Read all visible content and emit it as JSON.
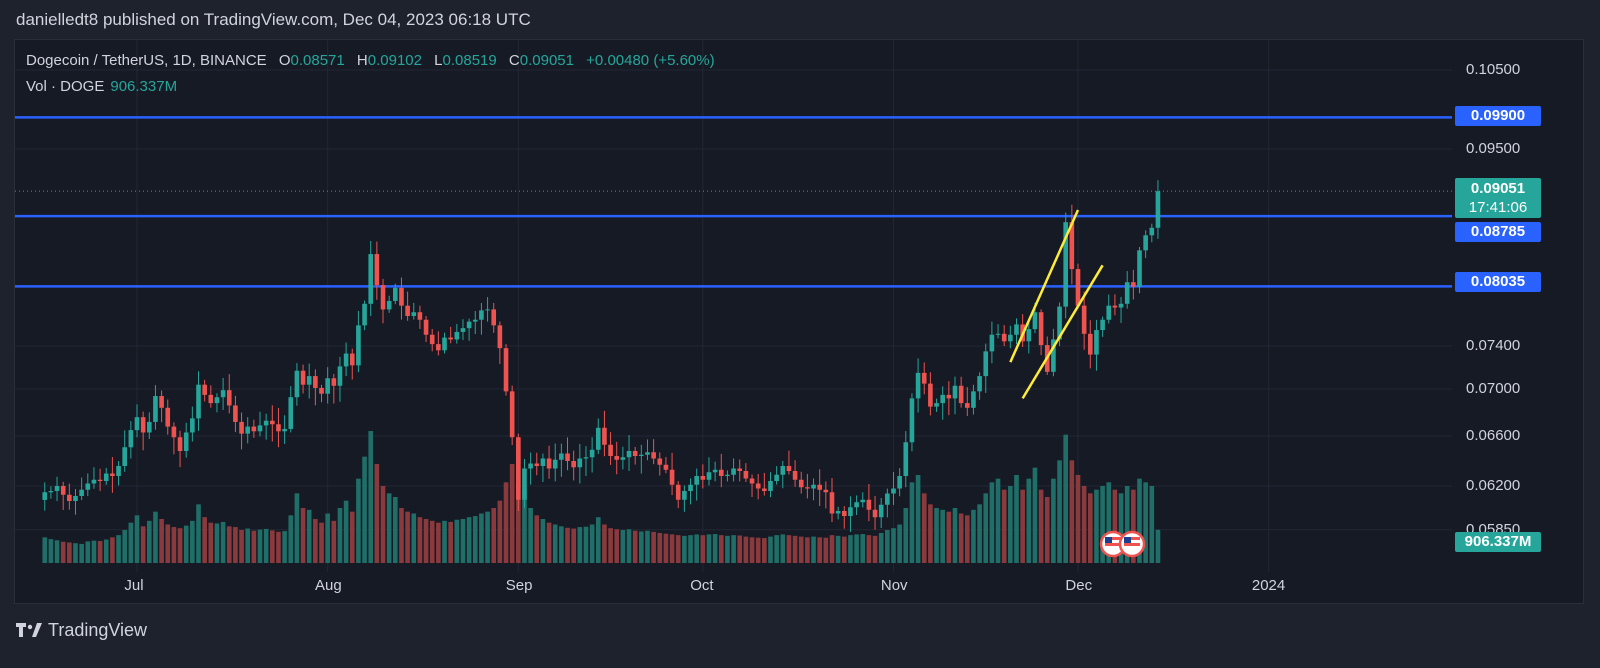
{
  "publisher_line": "danielledt8 published on TradingView.com, Dec 04, 2023 06:18 UTC",
  "footer_brand": "TradingView",
  "legend": {
    "symbol": "Dogecoin / TetherUS, 1D, BINANCE",
    "o_key": "O",
    "o_val": "0.08571",
    "h_key": "H",
    "h_val": "0.09102",
    "l_key": "L",
    "l_val": "0.08519",
    "c_key": "C",
    "c_val": "0.09051",
    "change": "+0.00480 (+5.60%)",
    "vol_label": "Vol · DOGE",
    "vol_val": "906.337M"
  },
  "price_tags": {
    "level_1": "0.09900",
    "current": "0.09051",
    "countdown": "17:41:06",
    "level_2": "0.08785",
    "level_3": "0.08035",
    "volume": "906.337M"
  },
  "colors": {
    "up": "#26a69a",
    "down": "#ef5350",
    "vol_up": "#1f6e67",
    "vol_down": "#8a3a3c",
    "level_line": "#2962ff",
    "channel": "#ffeb3b"
  },
  "chart_data": {
    "type": "candlestick",
    "title": "Dogecoin / TetherUS, 1D, BINANCE",
    "y_ticks": [
      0.105,
      0.099,
      0.095,
      0.0905,
      0.0878,
      0.0803,
      0.074,
      0.07,
      0.066,
      0.062,
      0.0585
    ],
    "y_tick_labels": [
      "0.10500",
      "0.09500",
      "0.07400",
      "0.07000",
      "0.06600",
      "0.06200",
      "0.05850"
    ],
    "x_labels": [
      "Jul",
      "Aug",
      "Sep",
      "Oct",
      "Nov",
      "Dec",
      "2024"
    ],
    "x_label_dates": [
      "2023-07-01",
      "2023-08-01",
      "2023-09-01",
      "2023-10-01",
      "2023-11-01",
      "2023-12-01",
      "2024-01-01"
    ],
    "horizontal_levels": [
      0.099,
      0.08785,
      0.08035
    ],
    "current_price": 0.09051,
    "channel_lines": [
      {
        "x1": "2023-11-20",
        "y1": 0.0725,
        "x2": "2023-12-01",
        "y2": 0.0885
      },
      {
        "x1": "2023-11-22",
        "y1": 0.0692,
        "x2": "2023-12-05",
        "y2": 0.0826
      }
    ],
    "ohlc_source": "approximated daily candles 2023-06-16 to 2023-12-04",
    "closes": [
      0.0615,
      0.0616,
      0.062,
      0.0613,
      0.0608,
      0.0612,
      0.0617,
      0.0622,
      0.0625,
      0.0624,
      0.063,
      0.0628,
      0.0636,
      0.0651,
      0.0665,
      0.0676,
      0.0663,
      0.0672,
      0.0694,
      0.0684,
      0.0668,
      0.0659,
      0.0648,
      0.0663,
      0.0675,
      0.0704,
      0.0695,
      0.0688,
      0.0693,
      0.0699,
      0.0686,
      0.0672,
      0.0662,
      0.0668,
      0.0664,
      0.0669,
      0.0673,
      0.067,
      0.0664,
      0.0666,
      0.0693,
      0.0717,
      0.0704,
      0.0712,
      0.0701,
      0.0696,
      0.071,
      0.0703,
      0.0721,
      0.0733,
      0.0722,
      0.0762,
      0.0785,
      0.0838,
      0.0805,
      0.0779,
      0.0788,
      0.0802,
      0.0783,
      0.0772,
      0.0776,
      0.0768,
      0.0752,
      0.0742,
      0.0736,
      0.0749,
      0.0747,
      0.0755,
      0.0759,
      0.0766,
      0.0768,
      0.0778,
      0.0779,
      0.0762,
      0.0738,
      0.0698,
      0.0659,
      0.0609,
      0.0634,
      0.0638,
      0.0636,
      0.0642,
      0.0634,
      0.0641,
      0.0646,
      0.064,
      0.0635,
      0.0642,
      0.0643,
      0.0649,
      0.0667,
      0.0653,
      0.0644,
      0.0641,
      0.0643,
      0.0648,
      0.0644,
      0.0645,
      0.0647,
      0.0642,
      0.0637,
      0.0633,
      0.0621,
      0.0609,
      0.0616,
      0.0621,
      0.0628,
      0.0625,
      0.0631,
      0.0633,
      0.0628,
      0.0629,
      0.0634,
      0.0632,
      0.0626,
      0.0622,
      0.0618,
      0.0616,
      0.0624,
      0.0629,
      0.0636,
      0.0632,
      0.0625,
      0.0619,
      0.0618,
      0.0621,
      0.0617,
      0.0615,
      0.0598,
      0.06,
      0.0596,
      0.0603,
      0.0607,
      0.0609,
      0.0601,
      0.0595,
      0.0605,
      0.0614,
      0.0618,
      0.0628,
      0.0655,
      0.0692,
      0.0715,
      0.0705,
      0.0685,
      0.0688,
      0.0695,
      0.0692,
      0.0703,
      0.0688,
      0.0684,
      0.0698,
      0.0712,
      0.0735,
      0.0752,
      0.0753,
      0.0745,
      0.0752,
      0.0763,
      0.0745,
      0.0758,
      0.0776,
      0.0741,
      0.0716,
      0.0747,
      0.0782,
      0.0872,
      0.0822,
      0.0783,
      0.0753,
      0.0732,
      0.0757,
      0.0768,
      0.0783,
      0.0781,
      0.0785,
      0.0808,
      0.0803,
      0.0842,
      0.0858,
      0.0866,
      0.0905
    ],
    "volumes_million": [
      700,
      650,
      620,
      580,
      560,
      540,
      520,
      590,
      610,
      600,
      640,
      700,
      760,
      900,
      1100,
      1300,
      1000,
      1150,
      1400,
      1200,
      1050,
      980,
      950,
      1020,
      1150,
      1600,
      1250,
      1100,
      1080,
      1120,
      1000,
      980,
      900,
      940,
      880,
      910,
      930,
      890,
      850,
      870,
      1300,
      1900,
      1500,
      1450,
      1200,
      1100,
      1350,
      1150,
      1500,
      1700,
      1400,
      2300,
      2900,
      3600,
      2700,
      2100,
      1900,
      1800,
      1500,
      1400,
      1350,
      1250,
      1200,
      1150,
      1100,
      1150,
      1120,
      1180,
      1200,
      1250,
      1280,
      1350,
      1400,
      1500,
      1700,
      2200,
      2700,
      3400,
      2000,
      1500,
      1300,
      1200,
      1100,
      1050,
      1000,
      960,
      940,
      980,
      990,
      1050,
      1250,
      1050,
      950,
      920,
      900,
      920,
      880,
      860,
      880,
      850,
      820,
      800,
      780,
      760,
      740,
      760,
      780,
      760,
      780,
      790,
      760,
      740,
      760,
      750,
      720,
      700,
      690,
      680,
      720,
      760,
      780,
      760,
      740,
      720,
      700,
      720,
      700,
      690,
      760,
      740,
      720,
      760,
      780,
      790,
      760,
      740,
      820,
      900,
      950,
      1050,
      1500,
      2200,
      2400,
      1900,
      1600,
      1500,
      1450,
      1400,
      1500,
      1350,
      1300,
      1450,
      1600,
      1900,
      2200,
      2300,
      2000,
      2100,
      2400,
      2000,
      2300,
      2600,
      2000,
      1800,
      2300,
      2800,
      3500,
      2800,
      2400,
      2100,
      1900,
      2000,
      2100,
      2200,
      2000,
      1900,
      2100,
      2000,
      2300,
      2200,
      2100,
      906
    ]
  }
}
